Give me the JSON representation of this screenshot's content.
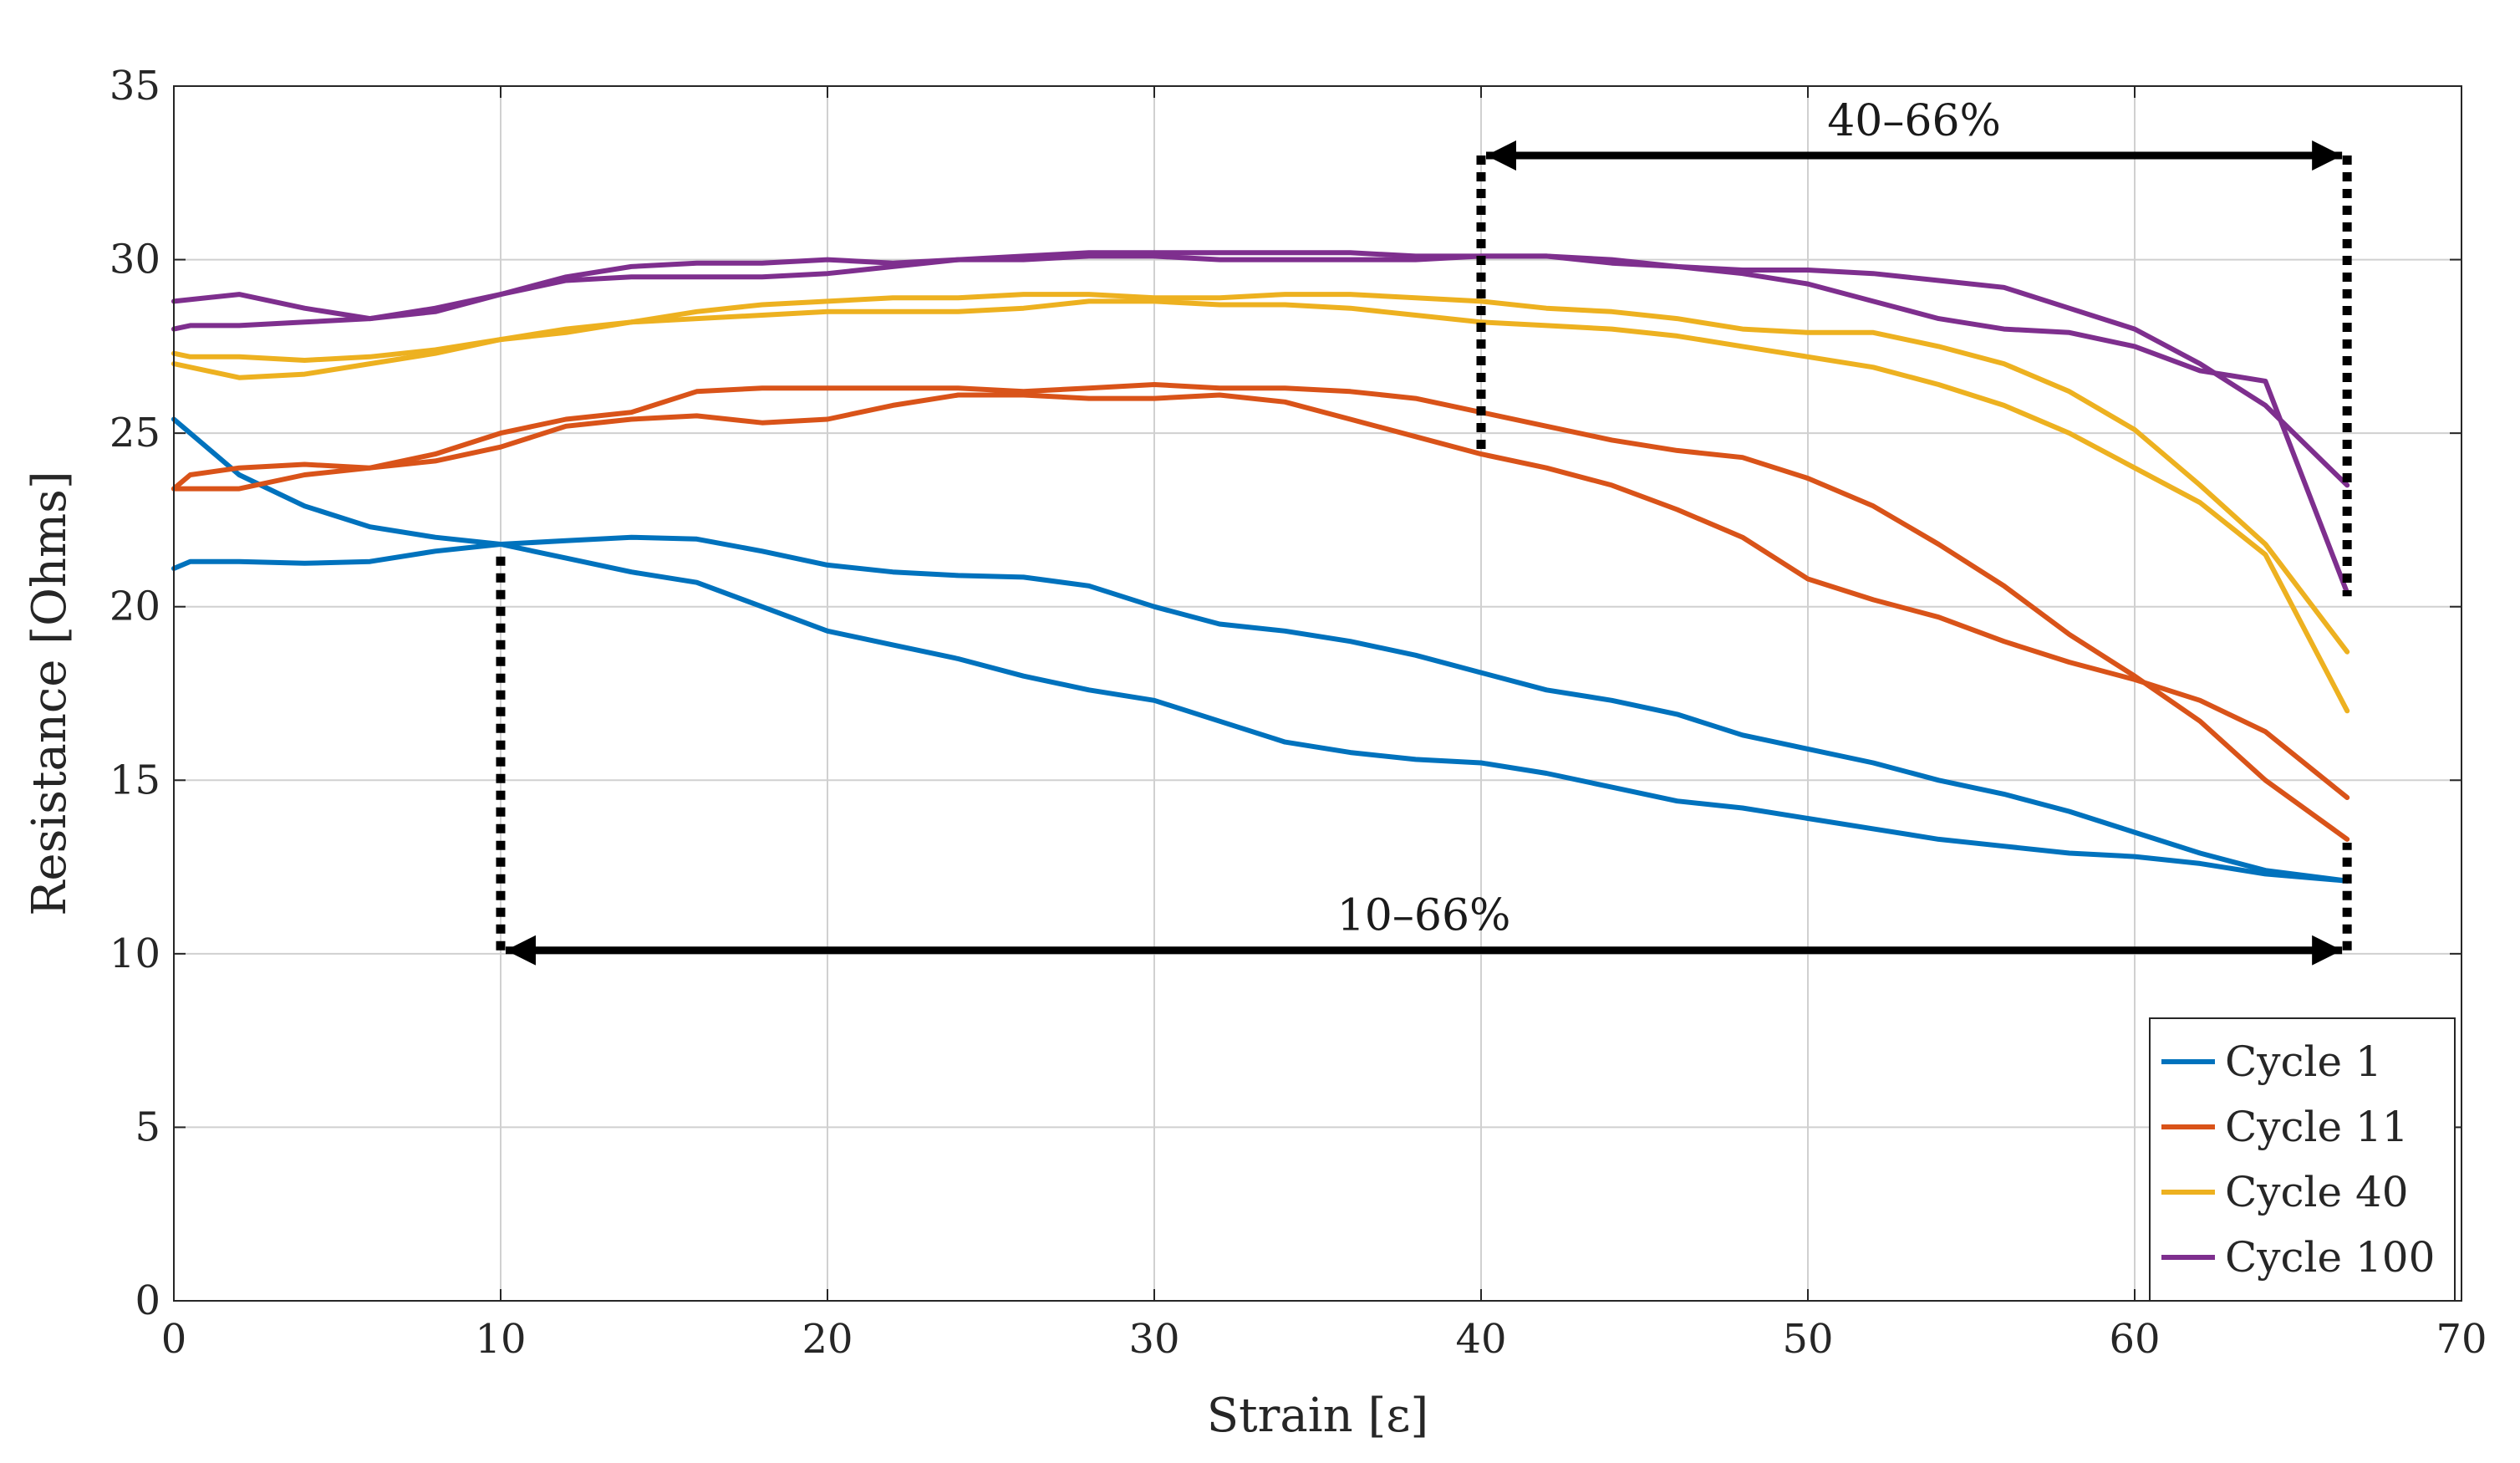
{
  "chart_data": {
    "type": "line",
    "title": "",
    "xlabel": "Strain [ε]",
    "ylabel": "Resistance [Ohms]",
    "xlim": [
      0,
      70
    ],
    "ylim": [
      0,
      35
    ],
    "xticks": [
      0,
      10,
      20,
      30,
      40,
      50,
      60,
      70
    ],
    "yticks": [
      0,
      5,
      10,
      15,
      20,
      25,
      30,
      35
    ],
    "grid": true,
    "legend_position": "bottom-right",
    "series": [
      {
        "name": "Cycle 1",
        "color": "#0072BD",
        "loading": {
          "x": [
            0,
            0.5,
            2,
            4,
            6,
            8,
            10,
            12,
            14,
            16,
            18,
            20,
            22,
            24,
            26,
            28,
            30,
            32,
            34,
            36,
            38,
            40,
            42,
            44,
            46,
            48,
            50,
            52,
            54,
            56,
            58,
            60,
            62,
            64,
            66.5
          ],
          "y": [
            21.1,
            21.3,
            21.3,
            21.25,
            21.3,
            21.6,
            21.8,
            21.9,
            22.0,
            21.95,
            21.6,
            21.2,
            21.0,
            20.9,
            20.85,
            20.6,
            20.0,
            19.5,
            19.3,
            19.0,
            18.6,
            18.1,
            17.6,
            17.3,
            16.9,
            16.3,
            15.9,
            15.5,
            15.0,
            14.6,
            14.1,
            13.5,
            12.9,
            12.4,
            12.1
          ]
        },
        "unloading": {
          "x": [
            66.5,
            64,
            62,
            60,
            58,
            56,
            54,
            52,
            50,
            48,
            46,
            44,
            42,
            40,
            38,
            36,
            34,
            32,
            30,
            28,
            26,
            24,
            22,
            20,
            18,
            16,
            14,
            12,
            10,
            8,
            6,
            4,
            2,
            0
          ],
          "y": [
            12.1,
            12.3,
            12.6,
            12.8,
            12.9,
            13.1,
            13.3,
            13.6,
            13.9,
            14.2,
            14.4,
            14.8,
            15.2,
            15.5,
            15.6,
            15.8,
            16.1,
            16.7,
            17.3,
            17.6,
            18.0,
            18.5,
            18.9,
            19.3,
            20.0,
            20.7,
            21.0,
            21.4,
            21.8,
            22.0,
            22.3,
            22.9,
            23.8,
            25.4
          ]
        }
      },
      {
        "name": "Cycle 11",
        "color": "#D95319",
        "loading": {
          "x": [
            0,
            0.5,
            2,
            4,
            6,
            8,
            10,
            12,
            14,
            16,
            18,
            20,
            22,
            24,
            26,
            28,
            30,
            32,
            34,
            36,
            38,
            40,
            42,
            44,
            46,
            48,
            50,
            52,
            54,
            56,
            58,
            60,
            62,
            64,
            66.5
          ],
          "y": [
            23.4,
            23.8,
            24.0,
            24.1,
            24.0,
            24.2,
            24.6,
            25.2,
            25.4,
            25.5,
            25.3,
            25.4,
            25.8,
            26.1,
            26.1,
            26.0,
            26.0,
            26.1,
            25.9,
            25.4,
            24.9,
            24.4,
            24.0,
            23.5,
            22.8,
            22.0,
            20.8,
            20.2,
            19.7,
            19.0,
            18.4,
            17.9,
            17.3,
            16.4,
            14.5
          ]
        },
        "unloading": {
          "x": [
            66.5,
            64,
            62,
            60,
            58,
            56,
            54,
            52,
            50,
            48,
            46,
            44,
            42,
            40,
            38,
            36,
            34,
            32,
            30,
            28,
            26,
            24,
            22,
            20,
            18,
            16,
            14,
            12,
            10,
            8,
            6,
            4,
            2,
            0
          ],
          "y": [
            13.3,
            15.0,
            16.7,
            18.0,
            19.2,
            20.6,
            21.8,
            22.9,
            23.7,
            24.3,
            24.5,
            24.8,
            25.2,
            25.6,
            26.0,
            26.2,
            26.3,
            26.3,
            26.4,
            26.3,
            26.2,
            26.3,
            26.3,
            26.3,
            26.3,
            26.2,
            25.6,
            25.4,
            25.0,
            24.4,
            24.0,
            23.8,
            23.4,
            23.4
          ]
        }
      },
      {
        "name": "Cycle 40",
        "color": "#EDB120",
        "loading": {
          "x": [
            0,
            0.5,
            2,
            4,
            6,
            8,
            10,
            12,
            14,
            16,
            18,
            20,
            22,
            24,
            26,
            28,
            30,
            32,
            34,
            36,
            38,
            40,
            42,
            44,
            46,
            48,
            50,
            52,
            54,
            56,
            58,
            60,
            62,
            64,
            66.5
          ],
          "y": [
            27.3,
            27.2,
            27.2,
            27.1,
            27.2,
            27.4,
            27.7,
            28.0,
            28.2,
            28.3,
            28.4,
            28.5,
            28.5,
            28.5,
            28.6,
            28.8,
            28.8,
            28.7,
            28.7,
            28.6,
            28.4,
            28.2,
            28.1,
            28.0,
            27.8,
            27.5,
            27.2,
            26.9,
            26.4,
            25.8,
            25.0,
            24.0,
            23.0,
            21.5,
            17.0
          ]
        },
        "unloading": {
          "x": [
            66.5,
            64,
            62,
            60,
            58,
            56,
            54,
            52,
            50,
            48,
            46,
            44,
            42,
            40,
            38,
            36,
            34,
            32,
            30,
            28,
            26,
            24,
            22,
            20,
            18,
            16,
            14,
            12,
            10,
            8,
            6,
            4,
            2,
            0
          ],
          "y": [
            18.7,
            21.8,
            23.5,
            25.1,
            26.2,
            27.0,
            27.5,
            27.9,
            27.9,
            28.0,
            28.3,
            28.5,
            28.6,
            28.8,
            28.9,
            29.0,
            29.0,
            28.9,
            28.9,
            29.0,
            29.0,
            28.9,
            28.9,
            28.8,
            28.7,
            28.5,
            28.2,
            27.9,
            27.7,
            27.3,
            27.0,
            26.7,
            26.6,
            27.0
          ]
        }
      },
      {
        "name": "Cycle 100",
        "color": "#7E2F8E",
        "loading": {
          "x": [
            0,
            0.5,
            2,
            4,
            6,
            8,
            10,
            12,
            14,
            16,
            18,
            20,
            22,
            24,
            26,
            28,
            30,
            32,
            34,
            36,
            38,
            40,
            42,
            44,
            46,
            48,
            50,
            52,
            54,
            56,
            58,
            60,
            62,
            64,
            66.5
          ],
          "y": [
            28.0,
            28.1,
            28.1,
            28.2,
            28.3,
            28.5,
            29.0,
            29.4,
            29.5,
            29.5,
            29.5,
            29.6,
            29.8,
            30.0,
            30.0,
            30.1,
            30.1,
            30.0,
            30.0,
            30.0,
            30.0,
            30.1,
            30.1,
            30.0,
            29.8,
            29.6,
            29.3,
            28.8,
            28.3,
            28.0,
            27.9,
            27.5,
            26.8,
            26.5,
            20.4
          ]
        },
        "unloading": {
          "x": [
            66.5,
            64,
            62,
            60,
            58,
            56,
            54,
            52,
            50,
            48,
            46,
            44,
            42,
            40,
            38,
            36,
            34,
            32,
            30,
            28,
            26,
            24,
            22,
            20,
            18,
            16,
            14,
            12,
            10,
            8,
            6,
            4,
            2,
            0
          ],
          "y": [
            23.5,
            25.8,
            27.0,
            28.0,
            28.6,
            29.2,
            29.4,
            29.6,
            29.7,
            29.7,
            29.8,
            29.9,
            30.1,
            30.1,
            30.1,
            30.2,
            30.2,
            30.2,
            30.2,
            30.2,
            30.1,
            30.0,
            29.9,
            30.0,
            29.9,
            29.9,
            29.8,
            29.5,
            29.0,
            28.6,
            28.3,
            28.6,
            29.0,
            28.8
          ]
        }
      }
    ],
    "annotations": [
      {
        "label": "40–66%",
        "start": 40,
        "end": 66.5,
        "y": 33,
        "drop_y": 24.4
      },
      {
        "label": "10–66%",
        "start": 10,
        "end": 66.5,
        "y": 10.1,
        "drop_y": 21.6
      }
    ]
  }
}
